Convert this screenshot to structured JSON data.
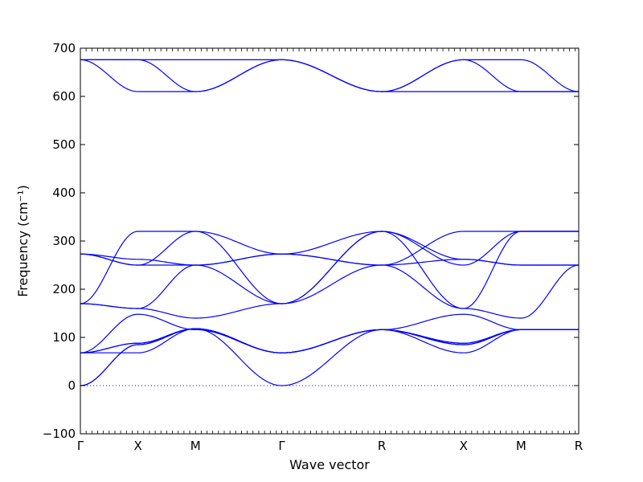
{
  "chart_data": {
    "type": "line",
    "title": "",
    "xlabel": "Wave vector",
    "ylabel": "Frequency (cm⁻¹)",
    "ylim": [
      -100,
      700
    ],
    "yticks": [
      -100,
      0,
      100,
      200,
      300,
      400,
      500,
      600,
      700
    ],
    "xticks": [
      {
        "x": 0,
        "label": "Γ"
      },
      {
        "x": 1,
        "label": "X"
      },
      {
        "x": 2,
        "label": "M"
      },
      {
        "x": 3.5,
        "label": "Γ"
      },
      {
        "x": 5.24,
        "label": "R"
      },
      {
        "x": 6.66,
        "label": "X"
      },
      {
        "x": 7.66,
        "label": "M"
      },
      {
        "x": 8.66,
        "label": "R"
      }
    ],
    "xlim": [
      0,
      8.66
    ],
    "zero_line": true,
    "colors": {
      "bands": "#0000ff",
      "zero_line": "#0000ff"
    },
    "series": [
      {
        "x": [
          0,
          1,
          2,
          3.5,
          5.24,
          6.66,
          7.66,
          8.66
        ],
        "values": [
          0,
          85,
          118,
          68,
          116,
          85,
          116,
          116
        ]
      },
      {
        "x": [
          0,
          1,
          2,
          3.5,
          5.24,
          6.66,
          7.66,
          8.66
        ],
        "values": [
          0,
          85,
          118,
          68,
          116,
          85,
          116,
          116
        ]
      },
      {
        "x": [
          0,
          1,
          2,
          3.5,
          5.24,
          6.66,
          7.66,
          8.66
        ],
        "values": [
          68,
          68,
          118,
          0,
          116,
          68,
          116,
          116
        ]
      },
      {
        "x": [
          0,
          1,
          2,
          3.5,
          5.24,
          6.66,
          7.66,
          8.66
        ],
        "values": [
          68,
          88,
          118,
          68,
          116,
          148,
          116,
          116
        ]
      },
      {
        "x": [
          0,
          1,
          2,
          3.5,
          5.24,
          6.66,
          7.66,
          8.66
        ],
        "values": [
          68,
          148,
          116,
          68,
          116,
          88,
          116,
          116
        ]
      },
      {
        "x": [
          0,
          1,
          2,
          3.5,
          5.24,
          6.66,
          7.66,
          8.66
        ],
        "values": [
          68,
          88,
          118,
          68,
          116,
          88,
          116,
          116
        ]
      },
      {
        "x": [
          0,
          1,
          2,
          3.5,
          5.24,
          6.66,
          7.66,
          8.66
        ],
        "values": [
          170,
          160,
          140,
          170,
          250,
          160,
          140,
          250
        ]
      },
      {
        "x": [
          0,
          1,
          2,
          3.5,
          5.24,
          6.66,
          7.66,
          8.66
        ],
        "values": [
          170,
          160,
          250,
          170,
          320,
          160,
          320,
          320
        ]
      },
      {
        "x": [
          0,
          1,
          2,
          3.5,
          5.24,
          6.66,
          7.66,
          8.66
        ],
        "values": [
          170,
          320,
          320,
          170,
          320,
          262,
          250,
          250
        ]
      },
      {
        "x": [
          0,
          1,
          2,
          3.5,
          5.24,
          6.66,
          7.66,
          8.66
        ],
        "values": [
          273,
          262,
          250,
          273,
          250,
          262,
          250,
          250
        ]
      },
      {
        "x": [
          0,
          1,
          2,
          3.5,
          5.24,
          6.66,
          7.66,
          8.66
        ],
        "values": [
          273,
          250,
          320,
          273,
          320,
          250,
          320,
          320
        ]
      },
      {
        "x": [
          0,
          1,
          2,
          3.5,
          5.24,
          6.66,
          7.66,
          8.66
        ],
        "values": [
          273,
          250,
          250,
          273,
          250,
          320,
          320,
          320
        ]
      },
      {
        "x": [
          0,
          1,
          2,
          3.5,
          5.24,
          6.66,
          7.66,
          8.66
        ],
        "values": [
          676,
          610,
          610,
          676,
          610,
          676,
          610,
          610
        ]
      },
      {
        "x": [
          0,
          1,
          2,
          3.5,
          5.24,
          6.66,
          7.66,
          8.66
        ],
        "values": [
          676,
          676,
          610,
          676,
          610,
          676,
          676,
          610
        ]
      },
      {
        "x": [
          0,
          1,
          2,
          3.5,
          5.24,
          6.66,
          7.66,
          8.66
        ],
        "values": [
          676,
          676,
          676,
          676,
          610,
          610,
          610,
          610
        ]
      }
    ]
  }
}
